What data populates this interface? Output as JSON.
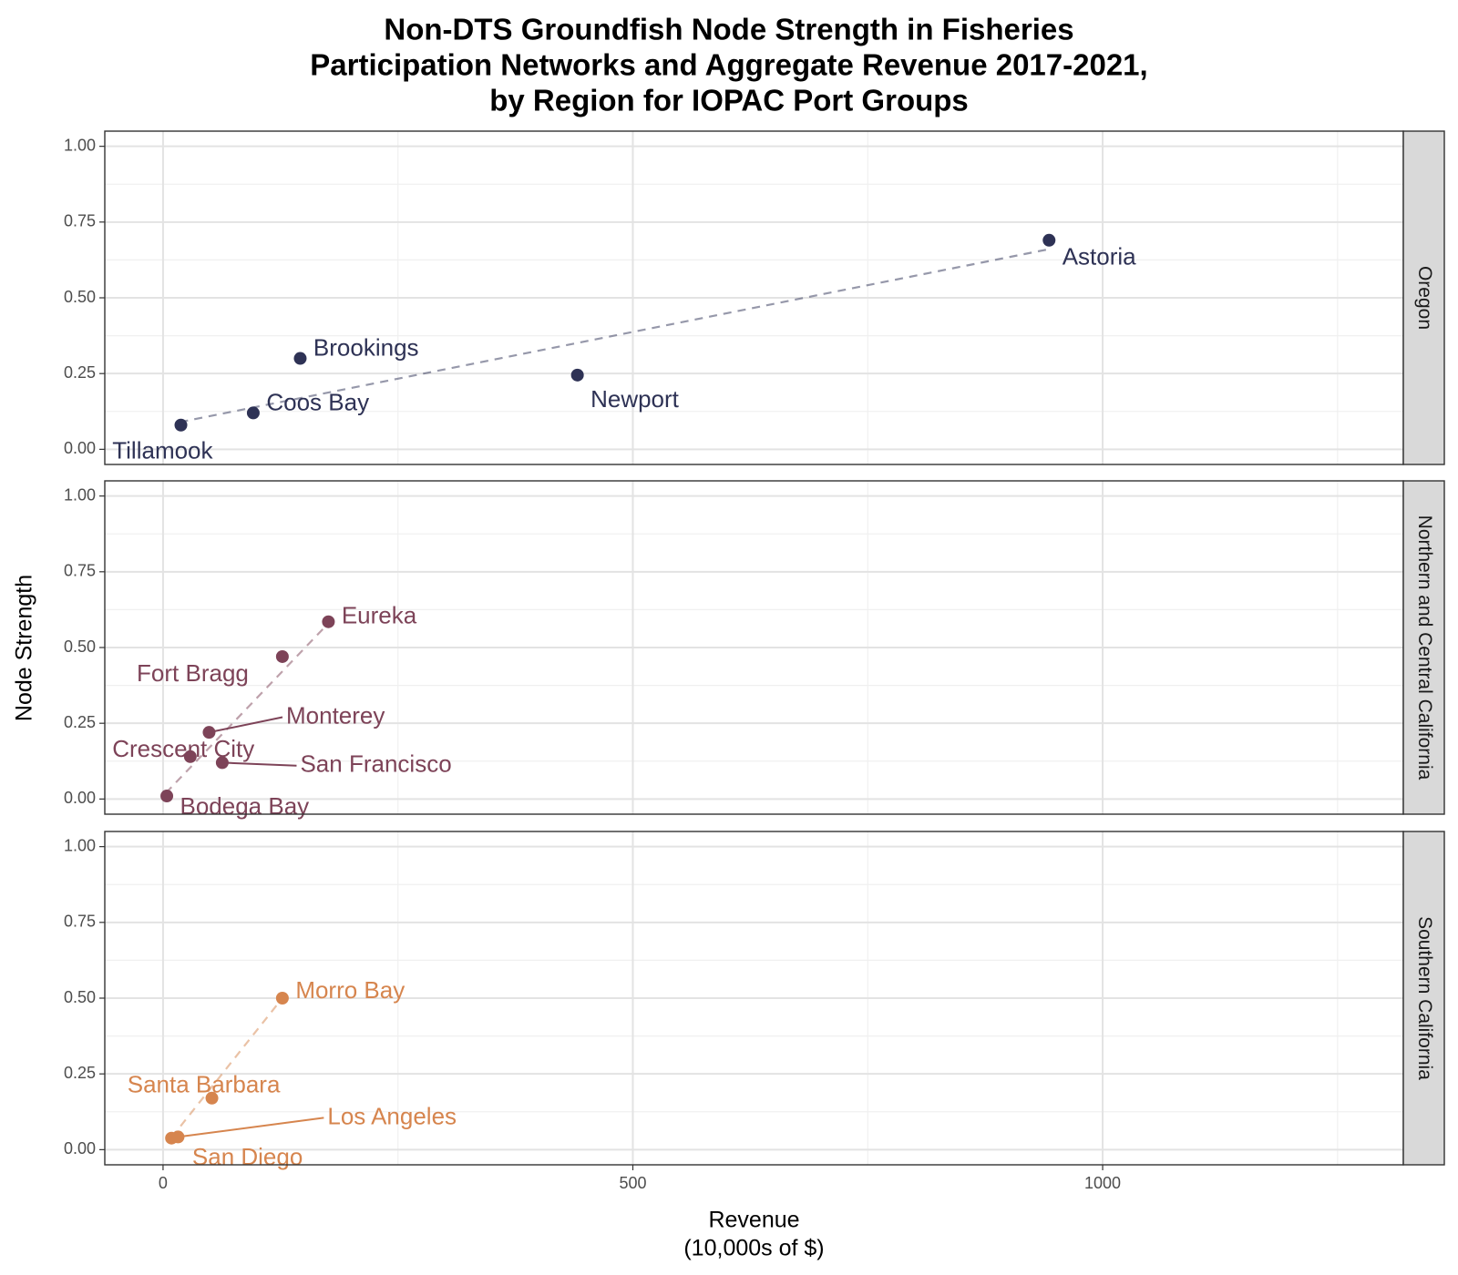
{
  "chart_data": {
    "type": "scatter",
    "title_lines": [
      "Non-DTS Groundfish Node Strength in Fisheries",
      "Participation Networks and Aggregate Revenue 2017-2021,",
      "by Region for IOPAC Port Groups"
    ],
    "xlabel_lines": [
      "Revenue",
      "(10,000s of $)"
    ],
    "ylabel": "Node Strength",
    "xlim": [
      -62,
      1320
    ],
    "ylim": [
      -0.05,
      1.05
    ],
    "x_ticks": [
      0,
      500,
      1000
    ],
    "x_tick_labels": [
      "0",
      "500",
      "1000"
    ],
    "x_minor_ticks": [
      250,
      750,
      1250
    ],
    "y_ticks": [
      0,
      0.25,
      0.5,
      0.75,
      1.0
    ],
    "y_tick_labels": [
      "0.00",
      "0.25",
      "0.50",
      "0.75",
      "1.00"
    ],
    "y_minor_ticks": [
      0.125,
      0.375,
      0.625,
      0.875
    ],
    "grid": true,
    "panels": [
      {
        "region": "Oregon",
        "color": "#2e3255",
        "trend": {
          "x": [
            18,
            942
          ],
          "y": [
            0.09,
            0.66
          ]
        },
        "points": [
          {
            "port": "Tillamook",
            "x": 19,
            "y": 0.08,
            "label_x": -54,
            "label_y": -0.01,
            "leader": false
          },
          {
            "port": "Coos Bay",
            "x": 96,
            "y": 0.12,
            "label_x": 110,
            "label_y": 0.15,
            "leader": false
          },
          {
            "port": "Brookings",
            "x": 146,
            "y": 0.3,
            "label_x": 160,
            "label_y": 0.33,
            "leader": false
          },
          {
            "port": "Newport",
            "x": 441,
            "y": 0.245,
            "label_x": 455,
            "label_y": 0.16,
            "leader": false
          },
          {
            "port": "Astoria",
            "x": 943,
            "y": 0.69,
            "label_x": 957,
            "label_y": 0.63,
            "leader": false
          }
        ]
      },
      {
        "region": "Northern and Central California",
        "color": "#7d4358",
        "trend": {
          "x": [
            3,
            176
          ],
          "y": [
            0.02,
            0.58
          ]
        },
        "points": [
          {
            "port": "Bodega Bay",
            "x": 4,
            "y": 0.01,
            "label_x": 18,
            "label_y": -0.03,
            "leader": false
          },
          {
            "port": "Crescent City",
            "x": 29,
            "y": 0.14,
            "label_x": -54,
            "label_y": 0.16,
            "leader": false
          },
          {
            "port": "San Francisco",
            "x": 63,
            "y": 0.12,
            "label_x": 146,
            "label_y": 0.11,
            "leader": true
          },
          {
            "port": "Monterey",
            "x": 49,
            "y": 0.22,
            "label_x": 131,
            "label_y": 0.27,
            "leader": true
          },
          {
            "port": "Fort Bragg",
            "x": 127,
            "y": 0.47,
            "label_x": -28,
            "label_y": 0.41,
            "leader": false
          },
          {
            "port": "Eureka",
            "x": 176,
            "y": 0.585,
            "label_x": 190,
            "label_y": 0.6,
            "leader": false
          }
        ]
      },
      {
        "region": "Southern California",
        "color": "#d6854e",
        "trend": {
          "x": [
            9,
            127
          ],
          "y": [
            0.04,
            0.5
          ]
        },
        "points": [
          {
            "port": "San Diego",
            "x": 9,
            "y": 0.038,
            "label_x": 31,
            "label_y": -0.03,
            "leader": false
          },
          {
            "port": "Los Angeles",
            "x": 16,
            "y": 0.042,
            "label_x": 175,
            "label_y": 0.105,
            "leader": true
          },
          {
            "port": "Santa Barbara",
            "x": 52,
            "y": 0.17,
            "label_x": -38,
            "label_y": 0.21,
            "leader": false
          },
          {
            "port": "Morro Bay",
            "x": 127,
            "y": 0.5,
            "label_x": 141,
            "label_y": 0.52,
            "leader": false
          }
        ]
      }
    ]
  }
}
